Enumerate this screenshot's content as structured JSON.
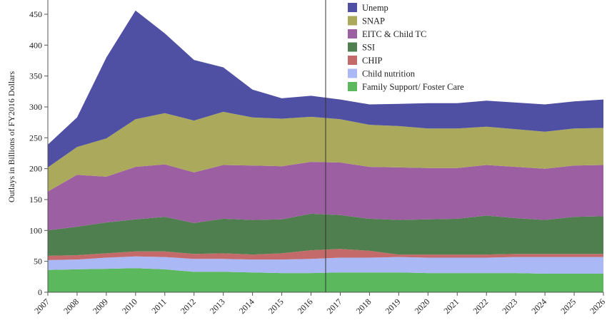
{
  "chart_data": {
    "type": "area",
    "stacked": true,
    "title": "",
    "xlabel": "",
    "ylabel": "Outlays in Billions of FY2016 Dollars",
    "ylim": [
      0,
      460
    ],
    "yticks": [
      0,
      50,
      100,
      150,
      200,
      250,
      300,
      350,
      400,
      450
    ],
    "x": [
      "2007",
      "2008",
      "2009",
      "2010",
      "2011",
      "2012",
      "2013",
      "2014",
      "2015",
      "2016",
      "2017",
      "2018",
      "2019",
      "2020",
      "2021",
      "2022",
      "2023",
      "2024",
      "2025",
      "2026"
    ],
    "grid": false,
    "legend_position": "top-right",
    "vertical_marker_x": 2016.5,
    "series": [
      {
        "name": "Family Support/ Foster Care",
        "color": "#5cb85c",
        "values": [
          36,
          37,
          38,
          39,
          37,
          33,
          33,
          32,
          31,
          31,
          32,
          32,
          32,
          31,
          31,
          31,
          31,
          30,
          30,
          30
        ]
      },
      {
        "name": "Child nutrition",
        "color": "#aab9f5",
        "values": [
          16,
          16,
          18,
          19,
          20,
          21,
          21,
          21,
          22,
          23,
          24,
          24,
          25,
          25,
          25,
          25,
          26,
          27,
          27,
          27
        ]
      },
      {
        "name": "CHIP",
        "color": "#c46a6a",
        "values": [
          7,
          7,
          7,
          8,
          9,
          8,
          9,
          8,
          10,
          14,
          14,
          11,
          4,
          5,
          5,
          5,
          5,
          5,
          5,
          5
        ]
      },
      {
        "name": "SSI",
        "color": "#4f7f4f",
        "values": [
          41,
          46,
          50,
          52,
          56,
          50,
          56,
          56,
          55,
          59,
          55,
          52,
          56,
          57,
          58,
          63,
          58,
          55,
          60,
          61
        ]
      },
      {
        "name": "EITC & Child TC",
        "color": "#9c5fa1",
        "values": [
          63,
          84,
          74,
          85,
          85,
          82,
          87,
          88,
          86,
          84,
          85,
          84,
          85,
          83,
          82,
          82,
          83,
          83,
          83,
          83
        ]
      },
      {
        "name": "SNAP",
        "color": "#abaa5c",
        "values": [
          39,
          45,
          62,
          77,
          83,
          84,
          86,
          78,
          77,
          73,
          70,
          68,
          67,
          64,
          64,
          62,
          61,
          60,
          60,
          60
        ]
      },
      {
        "name": "Unemp",
        "color": "#4f4fa3",
        "values": [
          37,
          48,
          131,
          176,
          129,
          98,
          72,
          45,
          33,
          34,
          32,
          33,
          36,
          41,
          41,
          42,
          43,
          44,
          44,
          46
        ]
      }
    ]
  }
}
